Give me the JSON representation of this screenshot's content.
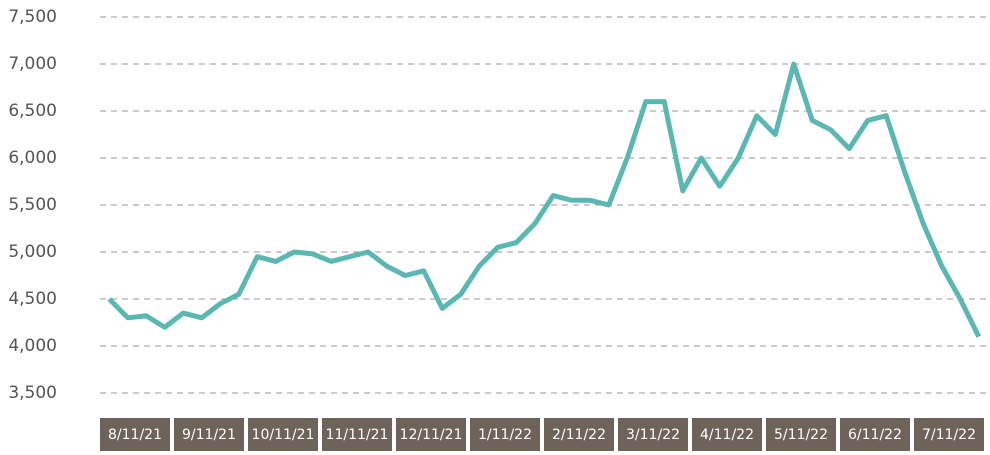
{
  "chart_data": {
    "type": "line",
    "ylim": [
      3500,
      7500
    ],
    "yticks": [
      {
        "value": 3500,
        "label": "3,500"
      },
      {
        "value": 4000,
        "label": "4,000"
      },
      {
        "value": 4500,
        "label": "4,500"
      },
      {
        "value": 5000,
        "label": "5,000"
      },
      {
        "value": 5500,
        "label": "5,500"
      },
      {
        "value": 6000,
        "label": "6,000"
      },
      {
        "value": 6500,
        "label": "6,500"
      },
      {
        "value": 7000,
        "label": "7,000"
      },
      {
        "value": 7500,
        "label": "7,500"
      }
    ],
    "grid": true,
    "categories": [
      null,
      null,
      "8/11/21",
      null,
      null,
      null,
      "9/11/21",
      null,
      null,
      null,
      "10/11/21",
      null,
      null,
      null,
      "11/11/21",
      null,
      null,
      null,
      "12/11/21",
      null,
      null,
      null,
      "1/11/22",
      null,
      null,
      null,
      "2/11/22",
      null,
      null,
      null,
      "3/11/22",
      null,
      null,
      null,
      "4/11/22",
      null,
      null,
      null,
      "5/11/22",
      null,
      null,
      null,
      "6/11/22",
      null,
      null,
      null,
      "7/11/22",
      null
    ],
    "series": [
      {
        "color": "#5bb7b1",
        "values": [
          4500,
          4300,
          4320,
          4200,
          4350,
          4300,
          4450,
          4550,
          4950,
          4900,
          5000,
          4980,
          4900,
          4950,
          5000,
          4850,
          4750,
          4800,
          4400,
          4550,
          4850,
          5050,
          5100,
          5300,
          5600,
          5550,
          5550,
          5500,
          6000,
          6600,
          6600,
          5650,
          6000,
          5700,
          6000,
          6450,
          6250,
          7000,
          6400,
          6300,
          6100,
          6400,
          6450,
          5850,
          5300,
          4850,
          4500,
          4100
        ]
      }
    ]
  }
}
